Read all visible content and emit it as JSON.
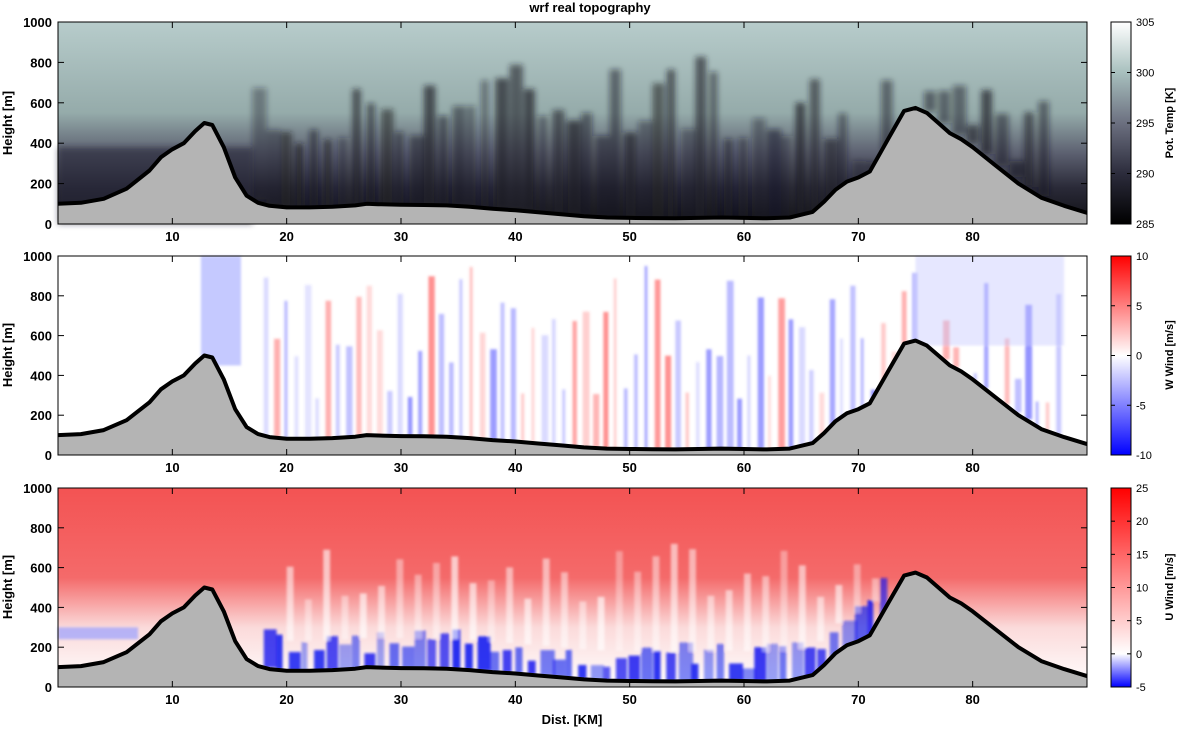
{
  "figure": {
    "title": "wrf real topography"
  },
  "colors": {
    "terrain_fill": "#b4b4b4",
    "terrain_line": "#000000",
    "theta_low": "#0f0f14",
    "theta_mid": "#5c6070",
    "theta_high": "#f0f7f5",
    "wind_negative": "#0000ff",
    "wind_zero": "#ffffff",
    "wind_positive": "#ff0000"
  },
  "chart_data": [
    {
      "type": "heatmap",
      "title": "wrf real topography",
      "xlabel": "",
      "ylabel": "Height [m]",
      "colorbar_label": "Pot. Temp [K]",
      "xlim": [
        0,
        90
      ],
      "ylim": [
        0,
        1000
      ],
      "clim": [
        285,
        305
      ],
      "colormap": "bone",
      "xticks": [
        10,
        20,
        30,
        40,
        50,
        60,
        70,
        80
      ],
      "yticks": [
        0,
        200,
        400,
        600,
        800,
        1000
      ],
      "cticks": [
        285,
        290,
        295,
        300,
        305
      ],
      "grid": false
    },
    {
      "type": "heatmap",
      "xlabel": "",
      "ylabel": "Height [m]",
      "colorbar_label": "W Wind [m/s]",
      "xlim": [
        0,
        90
      ],
      "ylim": [
        0,
        1000
      ],
      "clim": [
        -10,
        10
      ],
      "colormap": "blue-white-red",
      "xticks": [
        10,
        20,
        30,
        40,
        50,
        60,
        70,
        80
      ],
      "yticks": [
        0,
        200,
        400,
        600,
        800,
        1000
      ],
      "cticks": [
        -10,
        -5,
        0,
        5,
        10
      ],
      "grid": false
    },
    {
      "type": "heatmap",
      "xlabel": "Dist. [KM]",
      "ylabel": "Height [m]",
      "colorbar_label": "U Wind [m/s]",
      "xlim": [
        0,
        90
      ],
      "ylim": [
        0,
        1000
      ],
      "clim": [
        -5,
        25
      ],
      "colormap": "blue-white-red",
      "xticks": [
        10,
        20,
        30,
        40,
        50,
        60,
        70,
        80
      ],
      "yticks": [
        0,
        200,
        400,
        600,
        800,
        1000
      ],
      "cticks": [
        -5,
        0,
        5,
        10,
        15,
        20,
        25
      ],
      "grid": false
    }
  ],
  "terrain": {
    "x": [
      0,
      2,
      4,
      6,
      8,
      9,
      10,
      11,
      12,
      12.8,
      13.5,
      14.5,
      15.5,
      16.5,
      17.5,
      18.5,
      20,
      22,
      24,
      26,
      27,
      28,
      30,
      32,
      34,
      36,
      38,
      40,
      42,
      44,
      46,
      48,
      50,
      52,
      54,
      56,
      58,
      60,
      62,
      64,
      66,
      67,
      68,
      69,
      70,
      71,
      72,
      73,
      74,
      75,
      76,
      77,
      78,
      79,
      80,
      82,
      84,
      86,
      88,
      90
    ],
    "height": [
      100,
      105,
      125,
      175,
      265,
      330,
      370,
      400,
      460,
      500,
      490,
      380,
      230,
      140,
      105,
      90,
      82,
      82,
      85,
      92,
      100,
      98,
      95,
      94,
      92,
      85,
      75,
      68,
      58,
      48,
      38,
      32,
      30,
      29,
      28,
      30,
      32,
      30,
      28,
      32,
      60,
      110,
      170,
      210,
      230,
      260,
      360,
      460,
      560,
      575,
      550,
      500,
      450,
      420,
      380,
      290,
      200,
      130,
      90,
      55
    ]
  }
}
